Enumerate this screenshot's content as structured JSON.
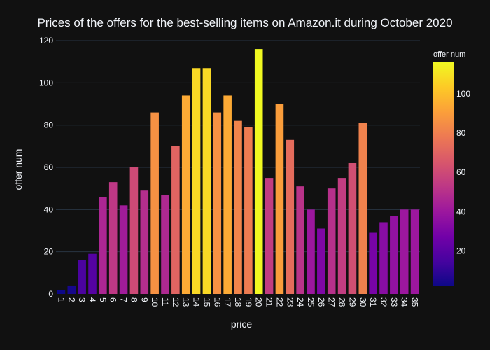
{
  "chart_data": {
    "type": "bar",
    "title": "Prices of the offers for the best-selling items on Amazon.it during October 2020",
    "xlabel": "price",
    "ylabel": "offer num",
    "colorbar_title": "offer num",
    "categories": [
      "1",
      "2",
      "3",
      "4",
      "5",
      "6",
      "7",
      "8",
      "9",
      "10",
      "11",
      "12",
      "13",
      "14",
      "15",
      "16",
      "17",
      "18",
      "19",
      "20",
      "21",
      "22",
      "23",
      "24",
      "25",
      "26",
      "27",
      "28",
      "29",
      "30",
      "31",
      "32",
      "33",
      "34",
      "35"
    ],
    "values": [
      2,
      4,
      16,
      19,
      46,
      53,
      42,
      60,
      49,
      86,
      47,
      70,
      94,
      107,
      107,
      86,
      94,
      82,
      79,
      116,
      55,
      90,
      73,
      51,
      40,
      31,
      50,
      55,
      62,
      81,
      29,
      34,
      37,
      40,
      40
    ],
    "ylim": [
      0,
      122
    ],
    "yticks": [
      0,
      20,
      40,
      60,
      80,
      100,
      120
    ],
    "colorbar_ticks": [
      20,
      40,
      60,
      80,
      100
    ],
    "colorbar_range": [
      2,
      116
    ],
    "colorscale": [
      "#0d0887",
      "#46039f",
      "#7201a8",
      "#9c179e",
      "#bd3786",
      "#d8576b",
      "#ed7953",
      "#fb9f3a",
      "#fdca26",
      "#f0f921"
    ],
    "grid": true,
    "legend": "colorbar-right"
  }
}
